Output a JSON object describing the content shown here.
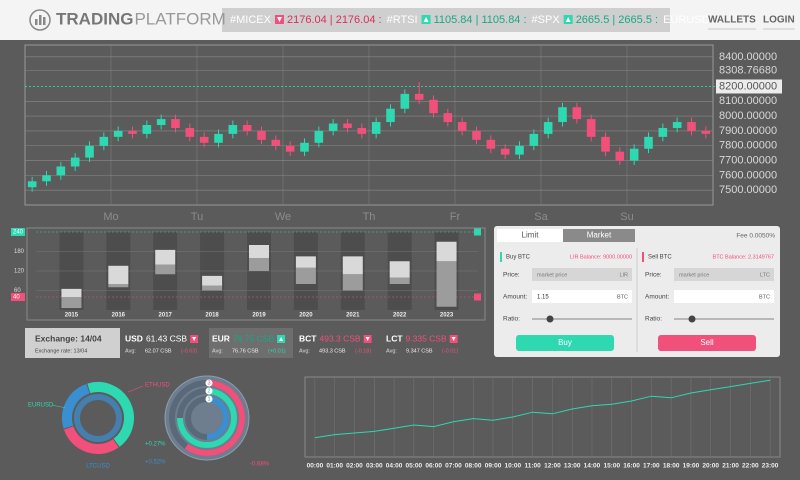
{
  "header": {
    "logo_bold": "TRADING",
    "logo_light": "PLATFORM",
    "nav": [
      "WALLETS",
      "LOGIN"
    ]
  },
  "ticker": [
    {
      "symbol": "#MICEX",
      "direction": "down",
      "quote": "2176.04 | 2176.04 :"
    },
    {
      "symbol": "#RTSI",
      "direction": "up",
      "quote": "1105.84 | 1105.84 :"
    },
    {
      "symbol": "#SPX",
      "direction": "up",
      "quote": "2665.5 | 2665.5 :"
    },
    {
      "symbol": "EURUSD"
    }
  ],
  "price_chart": {
    "type": "candlestick",
    "ylim": [
      7400,
      8480
    ],
    "yticks": [
      {
        "value": 8400,
        "label": "8400.00000"
      },
      {
        "value": 8308.7668,
        "label": "8308.76680"
      },
      {
        "value": 8200,
        "label": "8200.00000"
      },
      {
        "value": 8100,
        "label": "8100.00000"
      },
      {
        "value": 8000,
        "label": "8000.00000"
      },
      {
        "value": 7900,
        "label": "7900.00000"
      },
      {
        "value": 7800,
        "label": "7800.00000"
      },
      {
        "value": 7700,
        "label": "7700.00000"
      },
      {
        "value": 7600,
        "label": "7600.00000"
      },
      {
        "value": 7500,
        "label": "7500.00000"
      }
    ],
    "highlight": 8200,
    "days": [
      "Mo",
      "Tu",
      "We",
      "Th",
      "Fr",
      "Sa",
      "Su"
    ],
    "up_color": "#2ed8b0",
    "down_color": "#f0507a",
    "open": [
      7520,
      7560,
      7600,
      7660,
      7720,
      7800,
      7860,
      7900,
      7880,
      7940,
      7980,
      7920,
      7860,
      7820,
      7880,
      7940,
      7900,
      7840,
      7800,
      7760,
      7820,
      7900,
      7950,
      7920,
      7880,
      7960,
      8050,
      8150,
      8110,
      8020,
      7960,
      7900,
      7840,
      7780,
      7740,
      7800,
      7880,
      7960,
      8060,
      7980,
      7860,
      7760,
      7700,
      7780,
      7860,
      7920,
      7960,
      7900
    ],
    "high": [
      7590,
      7630,
      7690,
      7750,
      7830,
      7890,
      7930,
      7930,
      7970,
      8010,
      8010,
      7950,
      7890,
      7910,
      7970,
      7970,
      7930,
      7870,
      7830,
      7850,
      7930,
      7980,
      7980,
      7950,
      7990,
      8080,
      8180,
      8230,
      8140,
      8050,
      7990,
      7930,
      7870,
      7810,
      7830,
      7910,
      7990,
      8090,
      8090,
      8010,
      7890,
      7790,
      7810,
      7890,
      7950,
      7990,
      7990,
      7930
    ],
    "low": [
      7490,
      7530,
      7570,
      7630,
      7690,
      7770,
      7830,
      7850,
      7850,
      7910,
      7890,
      7830,
      7790,
      7790,
      7850,
      7870,
      7810,
      7770,
      7730,
      7730,
      7790,
      7870,
      7890,
      7850,
      7850,
      7930,
      8020,
      8080,
      7990,
      7930,
      7870,
      7810,
      7750,
      7710,
      7710,
      7770,
      7850,
      7930,
      7950,
      7830,
      7730,
      7670,
      7670,
      7750,
      7830,
      7890,
      7870,
      7850
    ],
    "close": [
      7560,
      7600,
      7660,
      7720,
      7800,
      7860,
      7900,
      7880,
      7940,
      7980,
      7920,
      7860,
      7820,
      7880,
      7940,
      7900,
      7840,
      7800,
      7760,
      7820,
      7900,
      7950,
      7920,
      7880,
      7960,
      8050,
      8150,
      8110,
      8020,
      7960,
      7900,
      7840,
      7780,
      7740,
      7800,
      7880,
      7960,
      8060,
      7980,
      7860,
      7760,
      7700,
      7780,
      7860,
      7920,
      7960,
      7900,
      7880
    ]
  },
  "volume_chart": {
    "type": "bar",
    "categories": [
      "2015",
      "2016",
      "2017",
      "2018",
      "2019",
      "2020",
      "2021",
      "2022",
      "2023"
    ],
    "low": [
      6,
      70,
      110,
      60,
      120,
      80,
      60,
      80,
      10
    ],
    "mid": [
      40,
      80,
      140,
      75,
      160,
      130,
      110,
      100,
      150
    ],
    "high": [
      65,
      136,
      185,
      105,
      200,
      165,
      165,
      150,
      210
    ],
    "ylim": [
      0,
      240
    ],
    "yticks": [
      60,
      120,
      180
    ],
    "upper_marker": 240,
    "lower_marker": 40
  },
  "trade": {
    "tabs": [
      "Limit",
      "Market"
    ],
    "fee": "Fee 0.0050%",
    "buy": {
      "title": "Buy BTC",
      "balance": "LIR Balance: 9000.00000",
      "price_label": "Price:",
      "price_placeholder": "market price",
      "price_unit": "LIR",
      "amount_label": "Amount:",
      "amount": "1.15",
      "amount_unit": "BTC",
      "ratio_label": "Ratio:",
      "ratio": 18,
      "button": "Buy"
    },
    "sell": {
      "title": "Sell BTC",
      "balance": "BTC Balance: 2.3149767",
      "price_label": "Price:",
      "price_placeholder": "market price",
      "price_unit": "LTC",
      "amount_label": "Amount:",
      "amount_unit": "BTC",
      "ratio_label": "Ratio:",
      "ratio": 18,
      "button": "Sell"
    }
  },
  "rates": {
    "exchange": "Exchange: 14/04",
    "exchange_rate": "Exchange rate: 13/04",
    "items": [
      {
        "code": "USD",
        "price": "61.43 CSB",
        "avg_label": "Avg:",
        "avg": "62.07 CSB",
        "change": "(-0.63)",
        "direction": "down"
      },
      {
        "code": "EUR",
        "price": "76.75 CSB",
        "avg_label": "Avg:",
        "avg": "76.76 CSB",
        "change": "(+0.01)",
        "direction": "up"
      },
      {
        "code": "BCT",
        "price": "493.3 CSB",
        "avg_label": "Avg:",
        "avg": "493.3 CSB",
        "change": "(-0.18)",
        "direction": "down"
      },
      {
        "code": "LCT",
        "price": "9.335 CSB",
        "avg_label": "Avg:",
        "avg": "9.347 CSB",
        "change": "(-0.01)",
        "direction": "down"
      }
    ]
  },
  "donut": {
    "type": "pie",
    "segments": [
      {
        "label": "EURUSD",
        "value": 45,
        "color": "#2ed8b0"
      },
      {
        "label": "ETHUSD",
        "value": 30,
        "color": "#f0507a"
      },
      {
        "label": "LTCUSD",
        "value": 25,
        "color": "#3a8fd0"
      }
    ]
  },
  "rings": {
    "type": "radial",
    "items": [
      {
        "label": "3",
        "value": 60,
        "change": "-0.68%",
        "color": "#f0507a"
      },
      {
        "label": "2",
        "value": 75,
        "change": "+0.27%",
        "color": "#2ed8b0"
      },
      {
        "label": "1",
        "value": 50,
        "change": "+0.52%",
        "color": "#3a8fd0"
      }
    ]
  },
  "line_chart": {
    "type": "line",
    "x": [
      "00:00",
      "01:00",
      "02:00",
      "03:00",
      "04:00",
      "05:00",
      "06:00",
      "07:00",
      "08:00",
      "09:00",
      "10:00",
      "11:00",
      "12:00",
      "13:00",
      "14:00",
      "15:00",
      "16:00",
      "17:00",
      "18:00",
      "19:00",
      "20:00",
      "21:00",
      "22:00",
      "23:00"
    ],
    "values": [
      7620,
      7640,
      7650,
      7660,
      7680,
      7700,
      7690,
      7720,
      7740,
      7730,
      7750,
      7780,
      7770,
      7800,
      7820,
      7830,
      7850,
      7880,
      7870,
      7900,
      7920,
      7940,
      7960,
      7980
    ],
    "ylim": [
      7500,
      8000
    ],
    "color": "#2ed8b0"
  }
}
